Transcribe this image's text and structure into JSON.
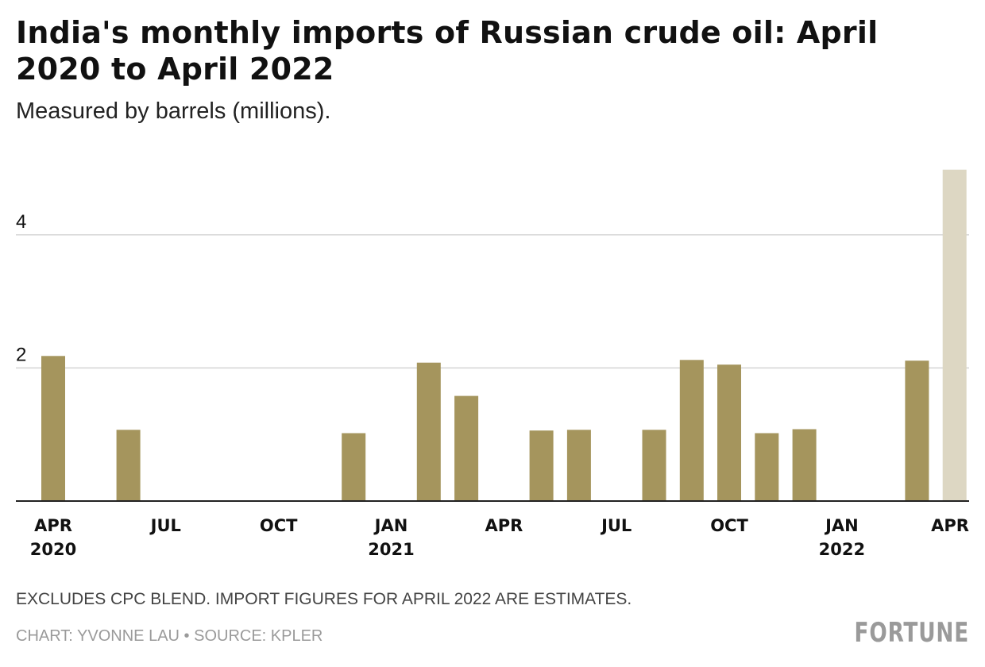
{
  "header": {
    "title": "India's monthly imports of Russian crude oil: April 2020 to April 2022",
    "subtitle": "Measured by barrels (millions)."
  },
  "footer": {
    "note": "EXCLUDES CPC BLEND. IMPORT FIGURES FOR APRIL 2022 ARE ESTIMATES.",
    "credit": "CHART: YVONNE LAU • SOURCE: KPLER",
    "logo_text": "FORTUNE"
  },
  "colors": {
    "bar": "#a5955d",
    "bar_estimate": "#ddd7c3",
    "gridline": "#d4d4d4",
    "baseline": "#222222",
    "text": "#111111"
  },
  "chart_data": {
    "type": "bar",
    "categories": [
      "Apr 2020",
      "May 2020",
      "Jun 2020",
      "Jul 2020",
      "Aug 2020",
      "Sep 2020",
      "Oct 2020",
      "Nov 2020",
      "Dec 2020",
      "Jan 2021",
      "Feb 2021",
      "Mar 2021",
      "Apr 2021",
      "May 2021",
      "Jun 2021",
      "Jul 2021",
      "Aug 2021",
      "Sep 2021",
      "Oct 2021",
      "Nov 2021",
      "Dec 2021",
      "Jan 2022",
      "Feb 2022",
      "Mar 2022",
      "Apr 2022"
    ],
    "values": [
      2.18,
      0,
      1.07,
      0,
      0,
      0,
      0,
      0,
      1.02,
      0,
      2.08,
      1.58,
      0,
      1.06,
      1.07,
      0,
      1.07,
      2.12,
      2.05,
      1.02,
      1.08,
      0,
      0,
      2.11,
      4.98
    ],
    "estimated": [
      false,
      false,
      false,
      false,
      false,
      false,
      false,
      false,
      false,
      false,
      false,
      false,
      false,
      false,
      false,
      false,
      false,
      false,
      false,
      false,
      false,
      false,
      false,
      false,
      true
    ],
    "y_ticks": [
      2,
      4
    ],
    "ylim": [
      0,
      5
    ],
    "x_tick_labels": [
      {
        "index": 0,
        "month": "APR",
        "year": "2020"
      },
      {
        "index": 3,
        "month": "JUL",
        "year": ""
      },
      {
        "index": 6,
        "month": "OCT",
        "year": ""
      },
      {
        "index": 9,
        "month": "JAN",
        "year": "2021"
      },
      {
        "index": 12,
        "month": "APR",
        "year": ""
      },
      {
        "index": 15,
        "month": "JUL",
        "year": ""
      },
      {
        "index": 18,
        "month": "OCT",
        "year": ""
      },
      {
        "index": 21,
        "month": "JAN",
        "year": "2022"
      },
      {
        "index": 24,
        "month": "APR",
        "year": ""
      }
    ],
    "grid": true,
    "legend": "none",
    "title": "India's monthly imports of Russian crude oil: April 2020 to April 2022",
    "xlabel": "",
    "ylabel": "Measured by barrels (millions)."
  }
}
